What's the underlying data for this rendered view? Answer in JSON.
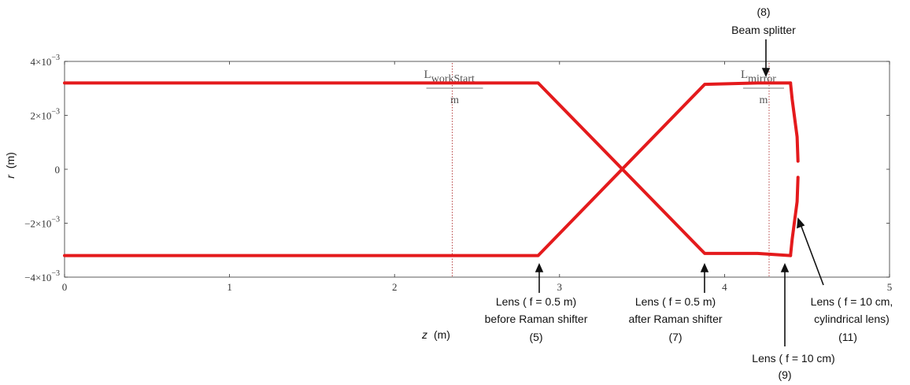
{
  "chart_data": {
    "type": "line",
    "xlabel": "z",
    "xlabel_unit": "(m)",
    "ylabel": "r",
    "ylabel_unit": "(m)",
    "xlim": [
      0,
      5
    ],
    "ylim": [
      -0.004,
      0.004
    ],
    "grid": false,
    "x_ticks": [
      {
        "value": 0,
        "label": "0"
      },
      {
        "value": 1,
        "label": "1"
      },
      {
        "value": 2,
        "label": "2"
      },
      {
        "value": 3,
        "label": "3"
      },
      {
        "value": 4,
        "label": "4"
      },
      {
        "value": 5,
        "label": "5"
      }
    ],
    "y_ticks": [
      {
        "value": 0.004,
        "base": "4×10",
        "exp": "−3"
      },
      {
        "value": 0.002,
        "base": "2×10",
        "exp": "−3"
      },
      {
        "value": 0,
        "base": "0",
        "exp": ""
      },
      {
        "value": -0.002,
        "base": "−2×10",
        "exp": "−3"
      },
      {
        "value": -0.004,
        "base": "−4×10",
        "exp": "−3"
      }
    ],
    "series": [
      {
        "color": "#e41a1c",
        "x": [
          0,
          2.87,
          3.88,
          4.2,
          4.4
        ],
        "y": [
          0.0032,
          0.0032,
          -0.00312,
          -0.00312,
          -0.0032
        ]
      },
      {
        "color": "#e41a1c",
        "x": [
          0,
          2.87,
          3.88,
          4.2,
          4.4
        ],
        "y": [
          -0.0032,
          -0.0032,
          0.00315,
          0.0032,
          0.0032
        ]
      },
      {
        "color": "#e41a1c",
        "x": [
          4.4,
          4.41,
          4.44,
          4.445
        ],
        "y": [
          0.0032,
          0.0026,
          0.0012,
          0.0003
        ]
      },
      {
        "color": "#e41a1c",
        "x": [
          4.445,
          4.44,
          4.41,
          4.4
        ],
        "y": [
          -0.0003,
          -0.0012,
          -0.0026,
          -0.0032
        ]
      }
    ],
    "reference_lines": [
      {
        "x": 2.35,
        "color": "#b03030",
        "label_base": "L",
        "label_sub": "workStart",
        "label_den": "m"
      },
      {
        "x": 4.27,
        "color": "#b03030",
        "label_base": "L",
        "label_sub": "mirror",
        "label_den": "m"
      }
    ],
    "annotations": [
      {
        "id": "lens-5",
        "lines": [
          "Lens ( f = 0.5 m)",
          "before Raman shifter",
          "(5)"
        ],
        "pointer_x": 2.88
      },
      {
        "id": "lens-7",
        "lines": [
          "Lens ( f = 0.5 m)",
          "after Raman shifter",
          "(7)"
        ],
        "pointer_x": 3.9
      },
      {
        "id": "lens-9",
        "lines": [
          "Lens ( f = 10 cm)",
          "(9)"
        ],
        "pointer_x": 4.43
      },
      {
        "id": "lens-11",
        "lines": [
          "Lens ( f = 10 cm,",
          "cylindrical lens)",
          "(11)"
        ],
        "pointer_x": 4.46
      },
      {
        "id": "beam-splitter",
        "lines": [
          "(8)",
          "Beam splitter"
        ],
        "pointer_x": 4.27
      }
    ]
  }
}
